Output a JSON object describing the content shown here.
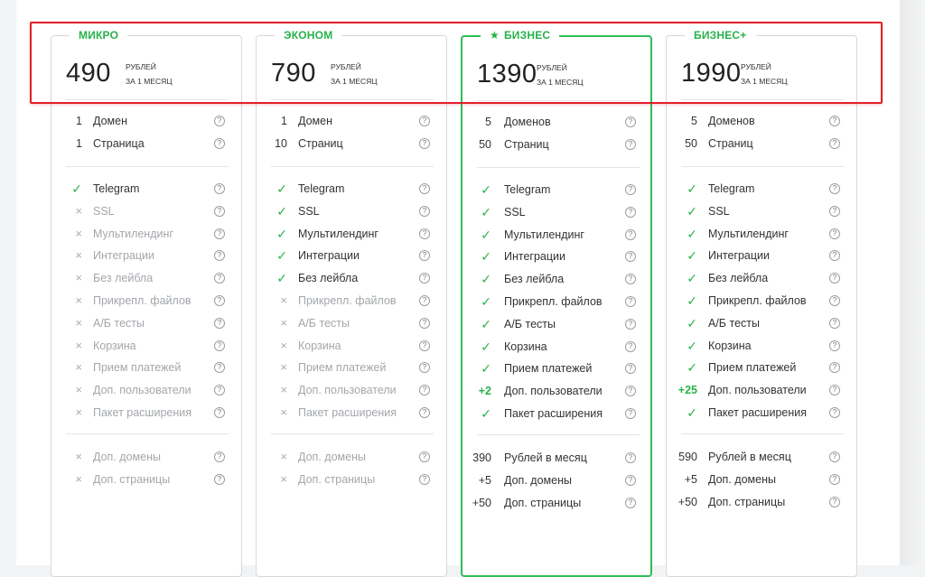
{
  "plans": [
    {
      "name": "МИКРО",
      "featured": false,
      "price": "490",
      "unit_line1": "РУБЛЕЙ",
      "unit_line2": "ЗА 1 МЕСЯЦ",
      "limits": [
        {
          "value": "1",
          "label": "Домен"
        },
        {
          "value": "1",
          "label": "Страница"
        }
      ],
      "features": [
        {
          "mark": "check",
          "label": "Telegram"
        },
        {
          "mark": "cross",
          "label": "SSL"
        },
        {
          "mark": "cross",
          "label": "Мультилендинг"
        },
        {
          "mark": "cross",
          "label": "Интеграции"
        },
        {
          "mark": "cross",
          "label": "Без лейбла"
        },
        {
          "mark": "cross",
          "label": "Прикрепл. файлов"
        },
        {
          "mark": "cross",
          "label": "А/Б тесты"
        },
        {
          "mark": "cross",
          "label": "Корзина"
        },
        {
          "mark": "cross",
          "label": "Прием платежей"
        },
        {
          "mark": "cross",
          "label": "Доп. пользователи"
        },
        {
          "mark": "cross",
          "label": "Пакет расширения"
        }
      ],
      "extras": [
        {
          "mark": "cross",
          "label": "Доп. домены"
        },
        {
          "mark": "cross",
          "label": "Доп. страницы"
        }
      ]
    },
    {
      "name": "ЭКОНОМ",
      "featured": false,
      "price": "790",
      "unit_line1": "РУБЛЕЙ",
      "unit_line2": "ЗА 1 МЕСЯЦ",
      "limits": [
        {
          "value": "1",
          "label": "Домен"
        },
        {
          "value": "10",
          "label": "Страниц"
        }
      ],
      "features": [
        {
          "mark": "check",
          "label": "Telegram"
        },
        {
          "mark": "check",
          "label": "SSL"
        },
        {
          "mark": "check",
          "label": "Мультилендинг"
        },
        {
          "mark": "check",
          "label": "Интеграции"
        },
        {
          "mark": "check",
          "label": "Без лейбла"
        },
        {
          "mark": "cross",
          "label": "Прикрепл. файлов"
        },
        {
          "mark": "cross",
          "label": "А/Б тесты"
        },
        {
          "mark": "cross",
          "label": "Корзина"
        },
        {
          "mark": "cross",
          "label": "Прием платежей"
        },
        {
          "mark": "cross",
          "label": "Доп. пользователи"
        },
        {
          "mark": "cross",
          "label": "Пакет расширения"
        }
      ],
      "extras": [
        {
          "mark": "cross",
          "label": "Доп. домены"
        },
        {
          "mark": "cross",
          "label": "Доп. страницы"
        }
      ]
    },
    {
      "name": "БИЗНЕС",
      "featured": true,
      "price": "1390",
      "unit_line1": "РУБЛЕЙ",
      "unit_line2": "ЗА 1 МЕСЯЦ",
      "limits": [
        {
          "value": "5",
          "label": "Доменов"
        },
        {
          "value": "50",
          "label": "Страниц"
        }
      ],
      "features": [
        {
          "mark": "check",
          "label": "Telegram"
        },
        {
          "mark": "check",
          "label": "SSL"
        },
        {
          "mark": "check",
          "label": "Мультилендинг"
        },
        {
          "mark": "check",
          "label": "Интеграции"
        },
        {
          "mark": "check",
          "label": "Без лейбла"
        },
        {
          "mark": "check",
          "label": "Прикрепл. файлов"
        },
        {
          "mark": "check",
          "label": "А/Б тесты"
        },
        {
          "mark": "check",
          "label": "Корзина"
        },
        {
          "mark": "check",
          "label": "Прием платежей"
        },
        {
          "mark": "text",
          "text": "+2",
          "label": "Доп. пользователи"
        },
        {
          "mark": "check",
          "label": "Пакет расширения"
        }
      ],
      "extras": [
        {
          "mark": "value",
          "text": "390",
          "label": "Рублей в месяц"
        },
        {
          "mark": "value",
          "text": "+5",
          "label": "Доп. домены"
        },
        {
          "mark": "value",
          "text": "+50",
          "label": "Доп. страницы"
        }
      ]
    },
    {
      "name": "БИЗНЕС+",
      "featured": false,
      "price": "1990",
      "unit_line1": "РУБЛЕЙ",
      "unit_line2": "ЗА 1 МЕСЯЦ",
      "limits": [
        {
          "value": "5",
          "label": "Доменов"
        },
        {
          "value": "50",
          "label": "Страниц"
        }
      ],
      "features": [
        {
          "mark": "check",
          "label": "Telegram"
        },
        {
          "mark": "check",
          "label": "SSL"
        },
        {
          "mark": "check",
          "label": "Мультилендинг"
        },
        {
          "mark": "check",
          "label": "Интеграции"
        },
        {
          "mark": "check",
          "label": "Без лейбла"
        },
        {
          "mark": "check",
          "label": "Прикрепл. файлов"
        },
        {
          "mark": "check",
          "label": "А/Б тесты"
        },
        {
          "mark": "check",
          "label": "Корзина"
        },
        {
          "mark": "check",
          "label": "Прием платежей"
        },
        {
          "mark": "text",
          "text": "+25",
          "label": "Доп. пользователи"
        },
        {
          "mark": "check",
          "label": "Пакет расширения"
        }
      ],
      "extras": [
        {
          "mark": "value",
          "text": "590",
          "label": "Рублей в месяц"
        },
        {
          "mark": "value",
          "text": "+5",
          "label": "Доп. домены"
        },
        {
          "mark": "value",
          "text": "+50",
          "label": "Доп. страницы"
        }
      ]
    }
  ],
  "symbols": {
    "check": "✓",
    "cross": "×",
    "help": "?",
    "star": "★"
  },
  "colors": {
    "accent": "#27b24a",
    "highlight": "#e0202a",
    "muted": "#a3a7ab"
  }
}
